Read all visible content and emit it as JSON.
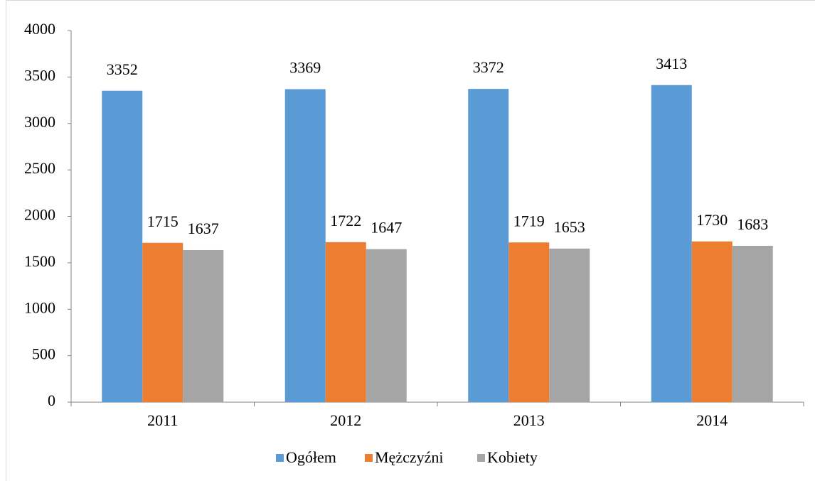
{
  "chart_data": {
    "type": "bar",
    "categories": [
      "2011",
      "2012",
      "2013",
      "2014"
    ],
    "series": [
      {
        "name": "Ogółem",
        "color": "#5b9bd5",
        "values": [
          3352,
          3369,
          3372,
          3413
        ]
      },
      {
        "name": "Mężczyźni",
        "color": "#ed7d31",
        "values": [
          1715,
          1722,
          1719,
          1730
        ]
      },
      {
        "name": "Kobiety",
        "color": "#a5a5a5",
        "values": [
          1637,
          1647,
          1653,
          1683
        ]
      }
    ],
    "ylim": [
      0,
      4000
    ],
    "yticks": [
      0,
      500,
      1000,
      1500,
      2000,
      2500,
      3000,
      3500,
      4000
    ],
    "legend": "bottom",
    "grid": false
  }
}
